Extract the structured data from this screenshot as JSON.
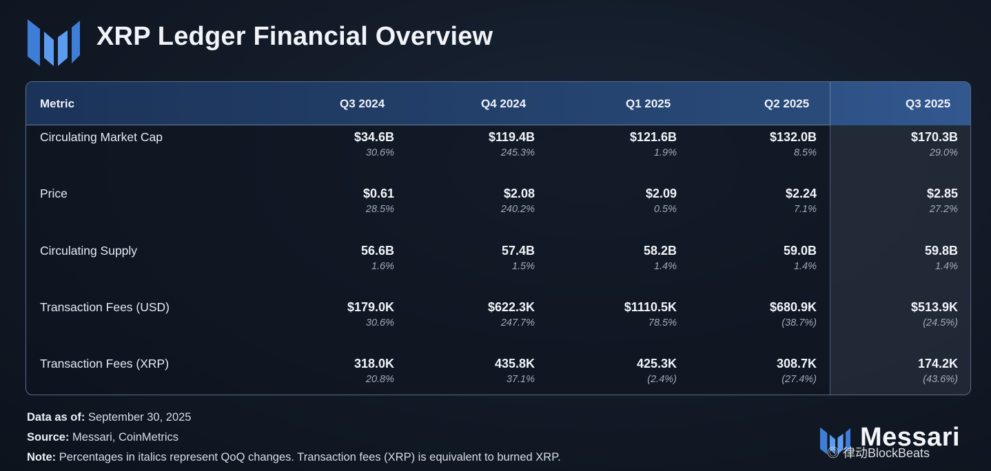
{
  "header": {
    "title": "XRP Ledger Financial Overview"
  },
  "table": {
    "columns": [
      "Metric",
      "Q3 2024",
      "Q4 2024",
      "Q1 2025",
      "Q2 2025",
      "Q3 2025"
    ],
    "rows": [
      {
        "metric": "Circulating Market Cap",
        "cells": [
          {
            "value": "$34.6B",
            "change": "30.6%"
          },
          {
            "value": "$119.4B",
            "change": "245.3%"
          },
          {
            "value": "$121.6B",
            "change": "1.9%"
          },
          {
            "value": "$132.0B",
            "change": "8.5%"
          },
          {
            "value": "$170.3B",
            "change": "29.0%"
          }
        ]
      },
      {
        "metric": "Price",
        "cells": [
          {
            "value": "$0.61",
            "change": "28.5%"
          },
          {
            "value": "$2.08",
            "change": "240.2%"
          },
          {
            "value": "$2.09",
            "change": "0.5%"
          },
          {
            "value": "$2.24",
            "change": "7.1%"
          },
          {
            "value": "$2.85",
            "change": "27.2%"
          }
        ]
      },
      {
        "metric": "Circulating Supply",
        "cells": [
          {
            "value": "56.6B",
            "change": "1.6%"
          },
          {
            "value": "57.4B",
            "change": "1.5%"
          },
          {
            "value": "58.2B",
            "change": "1.4%"
          },
          {
            "value": "59.0B",
            "change": "1.4%"
          },
          {
            "value": "59.8B",
            "change": "1.4%"
          }
        ]
      },
      {
        "metric": "Transaction Fees (USD)",
        "cells": [
          {
            "value": "$179.0K",
            "change": "30.6%"
          },
          {
            "value": "$622.3K",
            "change": "247.7%"
          },
          {
            "value": "$1110.5K",
            "change": "78.5%"
          },
          {
            "value": "$680.9K",
            "change": "(38.7%)"
          },
          {
            "value": "$513.9K",
            "change": "(24.5%)"
          }
        ]
      },
      {
        "metric": "Transaction Fees (XRP)",
        "cells": [
          {
            "value": "318.0K",
            "change": "20.8%"
          },
          {
            "value": "435.8K",
            "change": "37.1%"
          },
          {
            "value": "425.3K",
            "change": "(2.4%)"
          },
          {
            "value": "308.7K",
            "change": "(27.4%)"
          },
          {
            "value": "174.2K",
            "change": "(43.6%)"
          }
        ]
      }
    ]
  },
  "footer": {
    "data_as_of_label": "Data as of:",
    "data_as_of_value": "September 30, 2025",
    "source_label": "Source:",
    "source_value": "Messari, CoinMetrics",
    "note_label": "Note:",
    "note_value": "Percentages in italics represent QoQ changes. Transaction fees (XRP) is equivalent to burned XRP."
  },
  "branding": {
    "name": "Messari",
    "watermark": "◎ 律动BlockBeats"
  },
  "colors": {
    "background": "#131b28",
    "header_row": "#24426d",
    "highlight_column": "#33588f",
    "logo_blue": "#4d8fe6"
  },
  "icons": {
    "logo": "messari-logo-icon"
  }
}
